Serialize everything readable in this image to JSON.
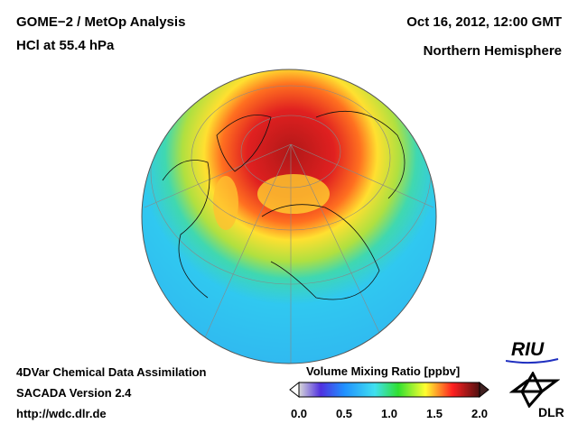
{
  "header": {
    "title": "GOME−2 / MetOp Analysis",
    "subtitle": "HCl at 55.4 hPa",
    "date": "Oct 16, 2012, 12:00 GMT",
    "region": "Northern Hemisphere"
  },
  "footer": {
    "line1": "4DVar Chemical Data Assimilation",
    "line2": "SACADA Version 2.4",
    "url": "http://wdc.dlr.de"
  },
  "colorbar": {
    "title": "Volume Mixing Ratio [ppbv]",
    "ticks": [
      "0.0",
      "0.5",
      "1.0",
      "1.5",
      "2.0"
    ],
    "min": 0,
    "max": 2,
    "colors": [
      "#d8d8d8",
      "#6040e0",
      "#2080ff",
      "#30d0ff",
      "#30e030",
      "#ffff30",
      "#ff3030",
      "#501010"
    ]
  },
  "logos": {
    "riu": "RIU",
    "dlr": "DLR"
  }
}
